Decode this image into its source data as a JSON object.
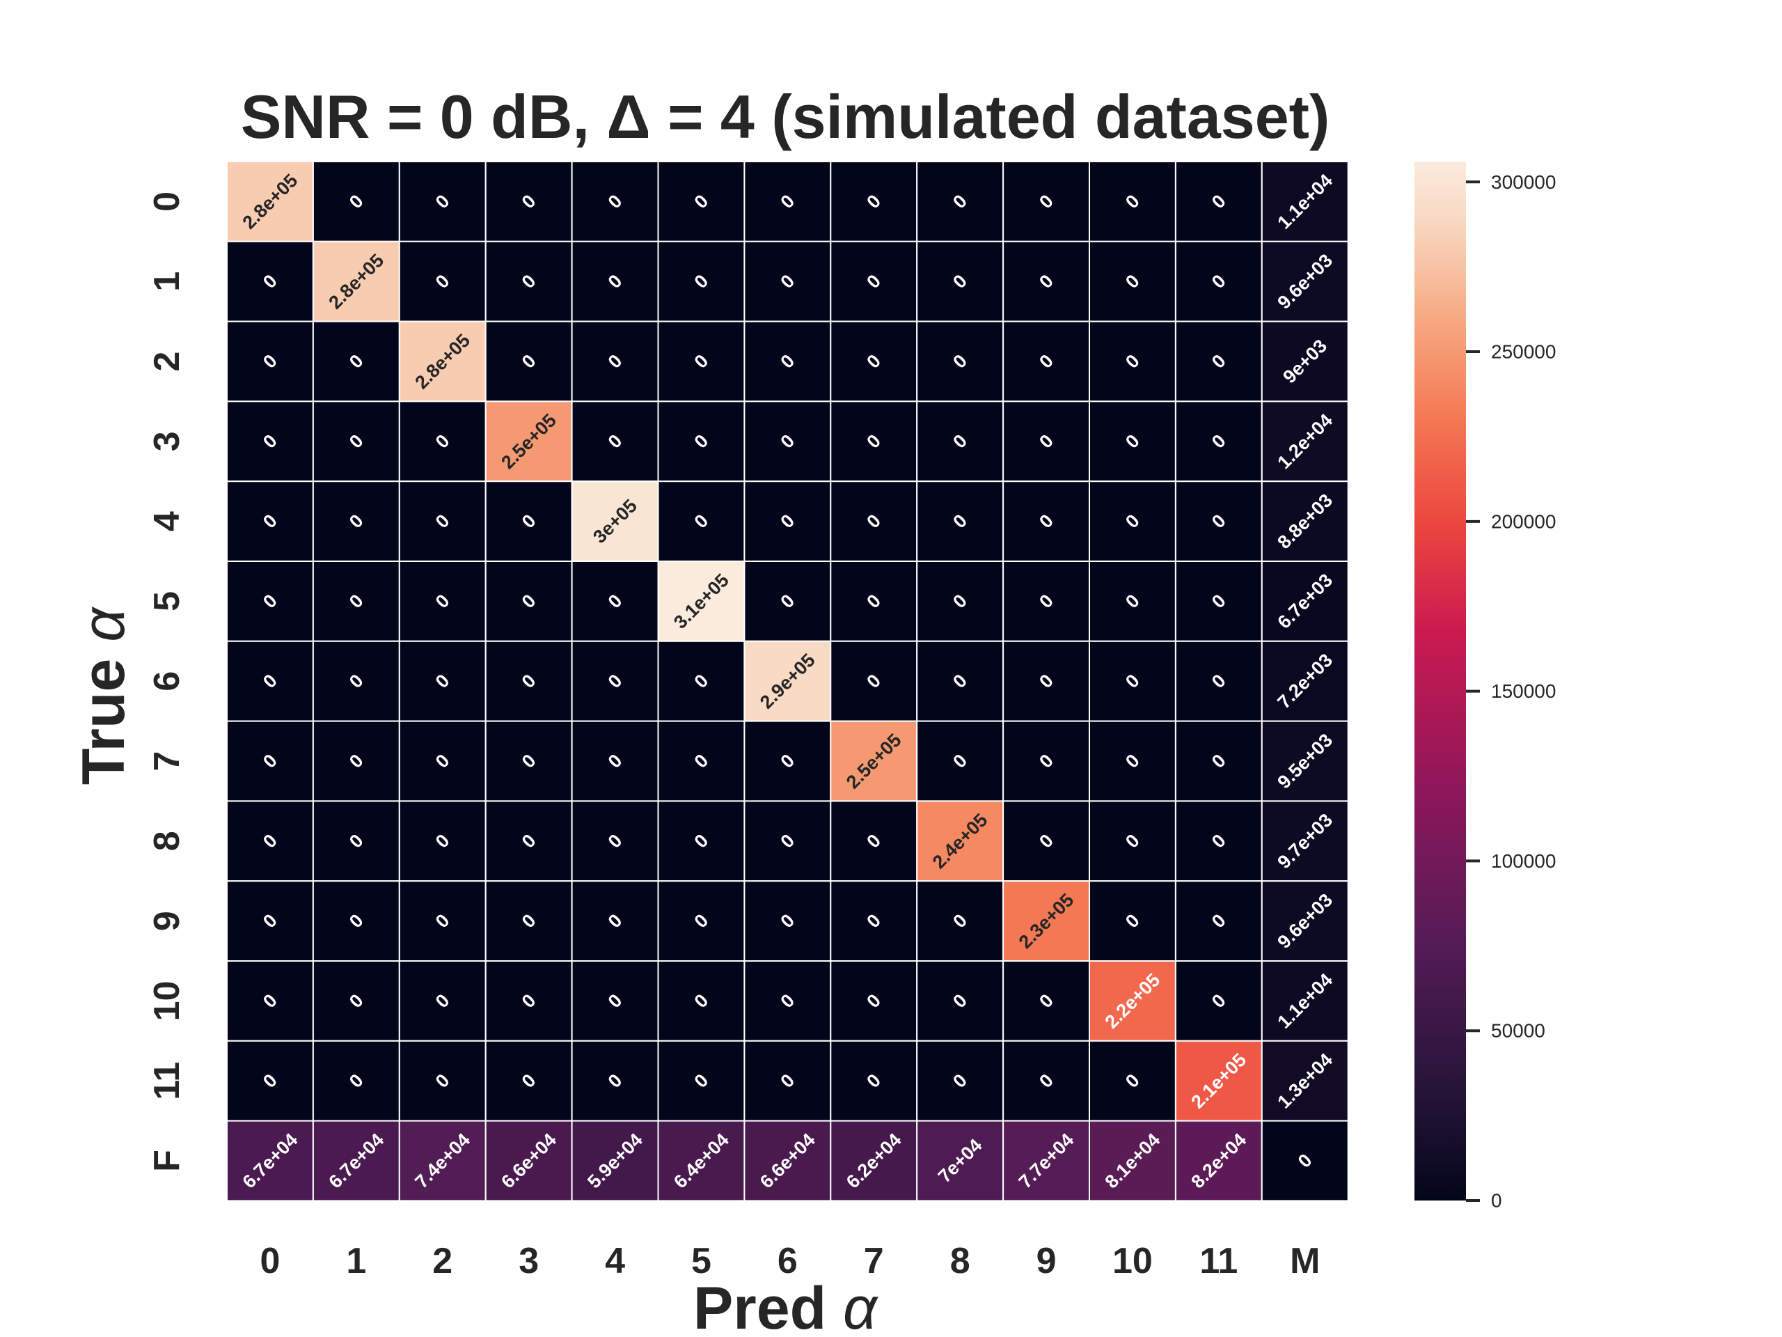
{
  "chart_data": {
    "type": "heatmap",
    "title": "SNR = 0 dB, Δ = 4 (simulated dataset)",
    "xlabel_text": "Pred ",
    "xlabel_symbol": "α",
    "ylabel_text": "True ",
    "ylabel_symbol": "α",
    "x_categories": [
      "0",
      "1",
      "2",
      "3",
      "4",
      "5",
      "6",
      "7",
      "8",
      "9",
      "10",
      "11",
      "M"
    ],
    "y_categories": [
      "0",
      "1",
      "2",
      "3",
      "4",
      "5",
      "6",
      "7",
      "8",
      "9",
      "10",
      "11",
      "F"
    ],
    "values": [
      [
        280000,
        0,
        0,
        0,
        0,
        0,
        0,
        0,
        0,
        0,
        0,
        0,
        11000
      ],
      [
        0,
        280000,
        0,
        0,
        0,
        0,
        0,
        0,
        0,
        0,
        0,
        0,
        9600
      ],
      [
        0,
        0,
        280000,
        0,
        0,
        0,
        0,
        0,
        0,
        0,
        0,
        0,
        9000
      ],
      [
        0,
        0,
        0,
        250000,
        0,
        0,
        0,
        0,
        0,
        0,
        0,
        0,
        12000
      ],
      [
        0,
        0,
        0,
        0,
        300000,
        0,
        0,
        0,
        0,
        0,
        0,
        0,
        8800
      ],
      [
        0,
        0,
        0,
        0,
        0,
        310000,
        0,
        0,
        0,
        0,
        0,
        0,
        6700
      ],
      [
        0,
        0,
        0,
        0,
        0,
        0,
        290000,
        0,
        0,
        0,
        0,
        0,
        7200
      ],
      [
        0,
        0,
        0,
        0,
        0,
        0,
        0,
        250000,
        0,
        0,
        0,
        0,
        9500
      ],
      [
        0,
        0,
        0,
        0,
        0,
        0,
        0,
        0,
        240000,
        0,
        0,
        0,
        9700
      ],
      [
        0,
        0,
        0,
        0,
        0,
        0,
        0,
        0,
        0,
        230000,
        0,
        0,
        9600
      ],
      [
        0,
        0,
        0,
        0,
        0,
        0,
        0,
        0,
        0,
        0,
        220000,
        0,
        11000
      ],
      [
        0,
        0,
        0,
        0,
        0,
        0,
        0,
        0,
        0,
        0,
        0,
        210000,
        13000
      ],
      [
        67000,
        67000,
        74000,
        66000,
        59000,
        64000,
        66000,
        62000,
        70000,
        77000,
        81000,
        82000,
        0
      ]
    ],
    "labels": [
      [
        "2.8e+05",
        "0",
        "0",
        "0",
        "0",
        "0",
        "0",
        "0",
        "0",
        "0",
        "0",
        "0",
        "1.1e+04"
      ],
      [
        "0",
        "2.8e+05",
        "0",
        "0",
        "0",
        "0",
        "0",
        "0",
        "0",
        "0",
        "0",
        "0",
        "9.6e+03"
      ],
      [
        "0",
        "0",
        "2.8e+05",
        "0",
        "0",
        "0",
        "0",
        "0",
        "0",
        "0",
        "0",
        "0",
        "9e+03"
      ],
      [
        "0",
        "0",
        "0",
        "2.5e+05",
        "0",
        "0",
        "0",
        "0",
        "0",
        "0",
        "0",
        "0",
        "1.2e+04"
      ],
      [
        "0",
        "0",
        "0",
        "0",
        "3e+05",
        "0",
        "0",
        "0",
        "0",
        "0",
        "0",
        "0",
        "8.8e+03"
      ],
      [
        "0",
        "0",
        "0",
        "0",
        "0",
        "3.1e+05",
        "0",
        "0",
        "0",
        "0",
        "0",
        "0",
        "6.7e+03"
      ],
      [
        "0",
        "0",
        "0",
        "0",
        "0",
        "0",
        "2.9e+05",
        "0",
        "0",
        "0",
        "0",
        "0",
        "7.2e+03"
      ],
      [
        "0",
        "0",
        "0",
        "0",
        "0",
        "0",
        "0",
        "2.5e+05",
        "0",
        "0",
        "0",
        "0",
        "9.5e+03"
      ],
      [
        "0",
        "0",
        "0",
        "0",
        "0",
        "0",
        "0",
        "0",
        "2.4e+05",
        "0",
        "0",
        "0",
        "9.7e+03"
      ],
      [
        "0",
        "0",
        "0",
        "0",
        "0",
        "0",
        "0",
        "0",
        "0",
        "2.3e+05",
        "0",
        "0",
        "9.6e+03"
      ],
      [
        "0",
        "0",
        "0",
        "0",
        "0",
        "0",
        "0",
        "0",
        "0",
        "0",
        "2.2e+05",
        "0",
        "1.1e+04"
      ],
      [
        "0",
        "0",
        "0",
        "0",
        "0",
        "0",
        "0",
        "0",
        "0",
        "0",
        "0",
        "2.1e+05",
        "1.3e+04"
      ],
      [
        "6.7e+04",
        "6.7e+04",
        "7.4e+04",
        "6.6e+04",
        "5.9e+04",
        "6.4e+04",
        "6.6e+04",
        "6.2e+04",
        "7e+04",
        "7.7e+04",
        "8.1e+04",
        "8.2e+04",
        "0"
      ]
    ],
    "colorbar": {
      "min": 0,
      "max": 306000,
      "ticks": [
        0,
        50000,
        100000,
        150000,
        200000,
        250000,
        300000
      ],
      "tick_labels": [
        "0",
        "50000",
        "100000",
        "150000",
        "200000",
        "250000",
        "300000"
      ],
      "colormap": "rocket"
    },
    "grid": true
  }
}
